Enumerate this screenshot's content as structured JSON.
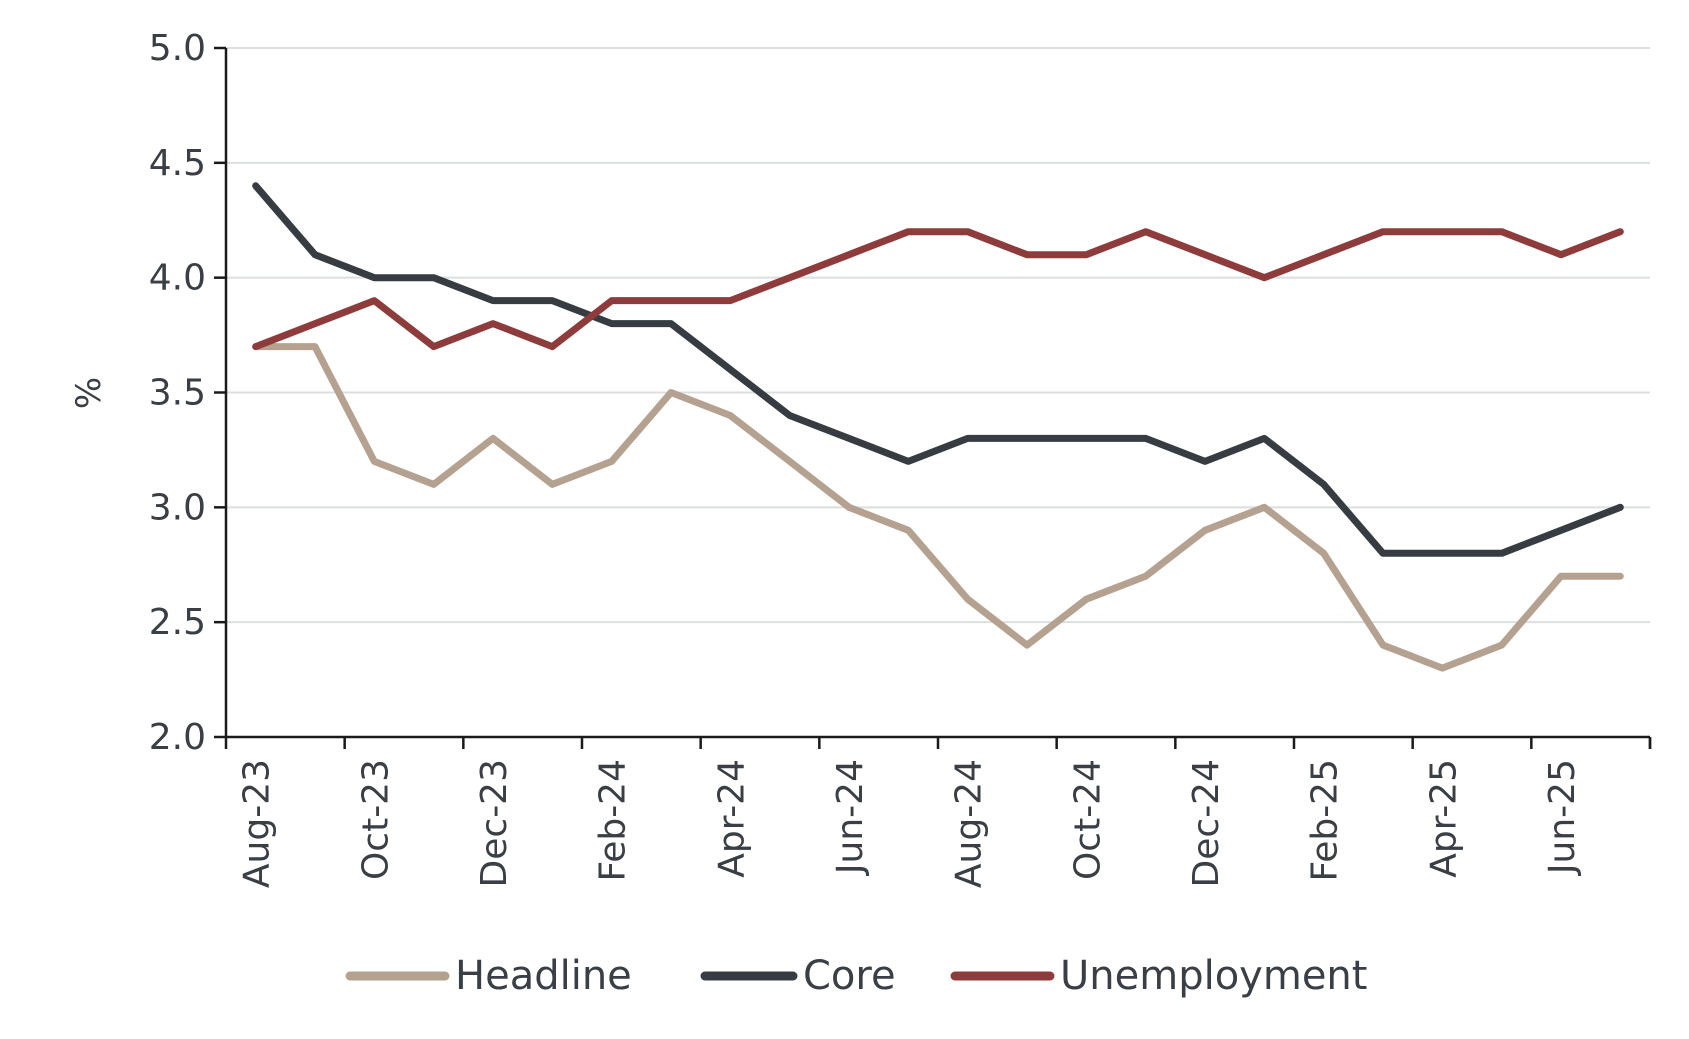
{
  "chart_data": {
    "type": "line",
    "title": "",
    "xlabel": "",
    "ylabel": "%",
    "ylim": [
      2.0,
      5.0
    ],
    "yticks": [
      "2.0",
      "2.5",
      "3.0",
      "3.5",
      "4.0",
      "4.5",
      "5.0"
    ],
    "grid": true,
    "legend_position": "bottom",
    "categories": [
      "Aug-23",
      "Sep-23",
      "Oct-23",
      "Nov-23",
      "Dec-23",
      "Jan-24",
      "Feb-24",
      "Mar-24",
      "Apr-24",
      "May-24",
      "Jun-24",
      "Jul-24",
      "Aug-24",
      "Sep-24",
      "Oct-24",
      "Nov-24",
      "Dec-24",
      "Jan-25",
      "Feb-25",
      "Mar-25",
      "Apr-25",
      "May-25",
      "Jun-25",
      "Jul-25"
    ],
    "xtick_labels": [
      "Aug-23",
      "Oct-23",
      "Dec-23",
      "Feb-24",
      "Apr-24",
      "Jun-24",
      "Aug-24",
      "Oct-24",
      "Dec-24",
      "Feb-25",
      "Apr-25",
      "Jun-25"
    ],
    "series": [
      {
        "name": "Headline",
        "color": "#b5a190",
        "values": [
          3.7,
          3.7,
          3.2,
          3.1,
          3.3,
          3.1,
          3.2,
          3.5,
          3.4,
          3.2,
          3.0,
          2.9,
          2.6,
          2.4,
          2.6,
          2.7,
          2.9,
          3.0,
          2.8,
          2.4,
          2.3,
          2.4,
          2.7,
          2.7
        ]
      },
      {
        "name": "Core",
        "color": "#363c41",
        "values": [
          4.4,
          4.1,
          4.0,
          4.0,
          3.9,
          3.9,
          3.8,
          3.8,
          3.6,
          3.4,
          3.3,
          3.2,
          3.3,
          3.3,
          3.3,
          3.3,
          3.2,
          3.3,
          3.1,
          2.8,
          2.8,
          2.8,
          2.9,
          3.0
        ]
      },
      {
        "name": "Unemployment",
        "color": "#8e3b3b",
        "values": [
          3.7,
          3.8,
          3.9,
          3.7,
          3.8,
          3.7,
          3.9,
          3.9,
          3.9,
          4.0,
          4.1,
          4.2,
          4.2,
          4.1,
          4.1,
          4.2,
          4.1,
          4.0,
          4.1,
          4.2,
          4.2,
          4.2,
          4.1,
          4.2
        ]
      }
    ]
  }
}
